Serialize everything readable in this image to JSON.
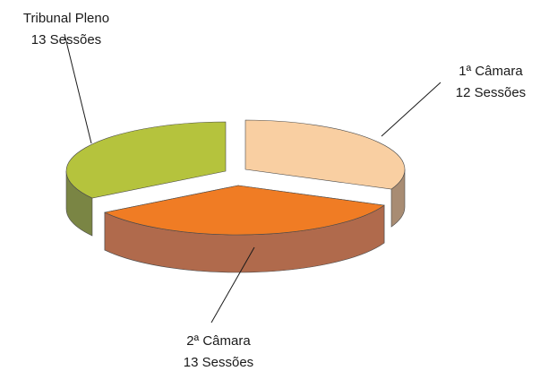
{
  "chart_data": {
    "type": "pie",
    "style": "3d-exploded",
    "categories": [
      "1ª Câmara",
      "2ª Câmara",
      "Tribunal Pleno"
    ],
    "values": [
      12,
      13,
      13
    ],
    "value_labels": [
      "12 Sessões",
      "13 Sessões",
      "13 Sessões"
    ],
    "colors": [
      "#F9CFA2",
      "#F07C24",
      "#B5C33D"
    ],
    "side_colors": [
      "#A88C73",
      "#B06A4C",
      "#7A8544"
    ],
    "legend": "none"
  }
}
